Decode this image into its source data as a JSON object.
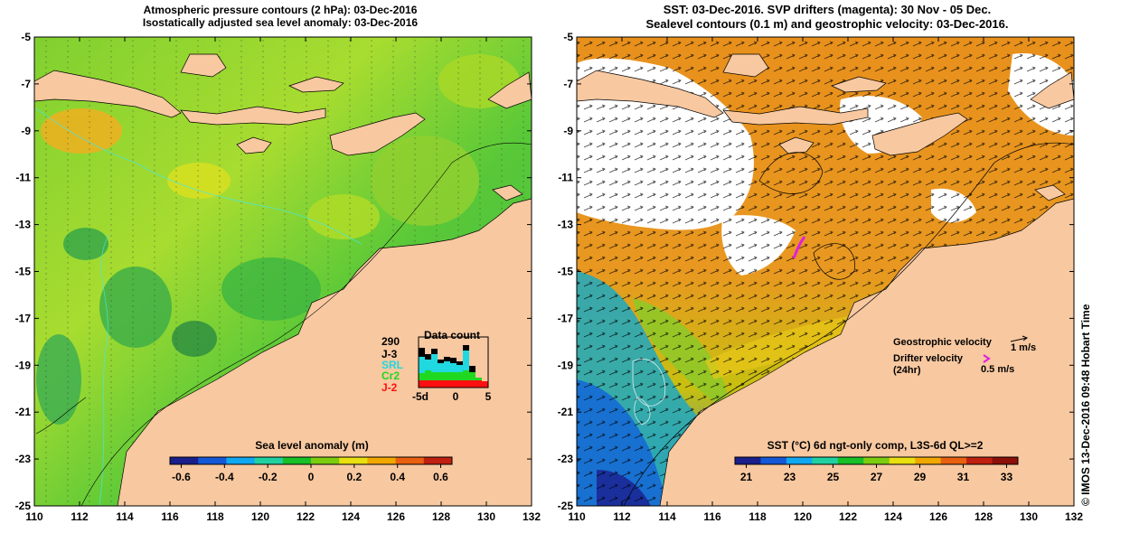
{
  "left_panel": {
    "title_line1": "Atmospheric pressure contours (2 hPa): 03-Dec-2016",
    "title_line2": "Isostatically adjusted sea level anomaly: 03-Dec-2016",
    "colorbar": {
      "title": "Sea level anomaly (m)",
      "ticks": [
        "-0.6",
        "-0.4",
        "-0.2",
        "0",
        "0.2",
        "0.4",
        "0.6"
      ],
      "colors": [
        "#1a1f8c",
        "#1458d8",
        "#10a8f0",
        "#20d0a0",
        "#18c028",
        "#7ccc10",
        "#e8e010",
        "#f0a800",
        "#e86010",
        "#c02010"
      ]
    },
    "data_count": {
      "title": "Data count",
      "total": "290",
      "legend": [
        {
          "name": "J-3",
          "color": "#000000"
        },
        {
          "name": "SRL",
          "color": "#20d8e0"
        },
        {
          "name": "Cr2",
          "color": "#20d820"
        },
        {
          "name": "J-2",
          "color": "#ff1010"
        }
      ],
      "xticks": [
        "-5d",
        "0",
        "5"
      ]
    }
  },
  "right_panel": {
    "title_line1": "SST: 03-Dec-2016. SVP drifters (magenta): 30 Nov - 05 Dec.",
    "title_line2": "Sealevel contours (0.1 m) and geostrophic velocity: 03-Dec-2016.",
    "legend": {
      "geostrophic": "Geostrophic velocity",
      "geostrophic_scale": "1 m/s",
      "drifter_line1": "Drifter velocity",
      "drifter_line2": "(24hr)",
      "drifter_scale": "0.5 m/s"
    },
    "colorbar": {
      "title": "SST (°C) 6d ngt-only comp, L3S-6d QL>=2",
      "ticks": [
        "21",
        "23",
        "25",
        "27",
        "29",
        "31",
        "33"
      ],
      "colors": [
        "#1a1f8c",
        "#1458d8",
        "#10a8f0",
        "#20d0a0",
        "#18c028",
        "#7ccc10",
        "#e8e010",
        "#f0a800",
        "#e86010",
        "#c02010",
        "#8c1008"
      ]
    },
    "credit": "© IMOS 13-Dec-2016 09:48 Hobart Time"
  },
  "axes": {
    "lon_ticks": [
      "110",
      "112",
      "114",
      "116",
      "118",
      "120",
      "122",
      "124",
      "126",
      "128",
      "130",
      "132"
    ],
    "lat_ticks": [
      "-5",
      "-7",
      "-9",
      "-11",
      "-13",
      "-15",
      "-17",
      "-19",
      "-21",
      "-23",
      "-25"
    ]
  },
  "colors": {
    "land": "#f8c8a0",
    "sea_left_base": "#58c838",
    "sea_right_base": "#e8901c",
    "cloud": "#ffffff"
  }
}
